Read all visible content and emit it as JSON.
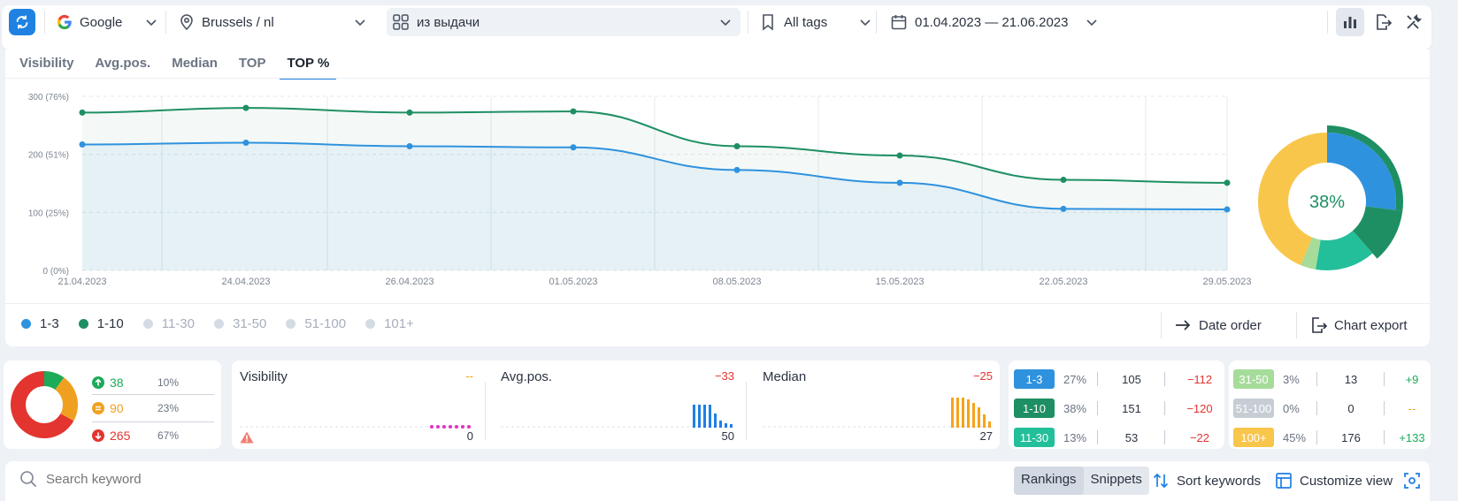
{
  "toolbar": {
    "search_engine": "Google",
    "region": "Brussels / nl",
    "source": "из выдачи",
    "tags": "All tags",
    "date_range": "01.04.2023 — 21.06.2023"
  },
  "tabs": [
    "Visibility",
    "Avg.pos.",
    "Median",
    "TOP",
    "TOP %"
  ],
  "chart_data": {
    "type": "area",
    "title": "TOP %",
    "x": [
      "21.04.2023",
      "24.04.2023",
      "26.04.2023",
      "01.05.2023",
      "08.05.2023",
      "15.05.2023",
      "22.05.2023",
      "29.05.2023"
    ],
    "y_ticks": [
      "0 (0%)",
      "100 (25%)",
      "200 (51%)",
      "300 (76%)"
    ],
    "ylim": [
      0,
      300
    ],
    "series": [
      {
        "name": "1-10",
        "color": "#1e8f63",
        "values": [
          272,
          280,
          272,
          274,
          214,
          198,
          156,
          151
        ]
      },
      {
        "name": "1-3",
        "color": "#2f92de",
        "values": [
          217,
          220,
          214,
          212,
          173,
          151,
          106,
          105
        ]
      }
    ],
    "donut": {
      "center_label": "38%",
      "segments": [
        {
          "name": "1-3",
          "value": 27,
          "color": "#2f92de"
        },
        {
          "name": "1-10",
          "value": 38,
          "color": "#1e8f63"
        },
        {
          "name": "11-30",
          "value": 13,
          "color": "#23bf9a"
        },
        {
          "name": "31-50",
          "value": 3,
          "color": "#a6dc9a"
        },
        {
          "name": "100+",
          "value": 45,
          "color": "#f8c64b"
        }
      ]
    }
  },
  "legend": {
    "items": [
      {
        "label": "1-3",
        "color": "#2f92de",
        "active": true
      },
      {
        "label": "1-10",
        "color": "#1e8f63",
        "active": true
      },
      {
        "label": "11-30",
        "color": "#d5dbe4",
        "active": false
      },
      {
        "label": "31-50",
        "color": "#d5dbe4",
        "active": false
      },
      {
        "label": "51-100",
        "color": "#d5dbe4",
        "active": false
      },
      {
        "label": "101+",
        "color": "#d5dbe4",
        "active": false
      }
    ],
    "date_order": "Date order",
    "chart_export": "Chart export"
  },
  "summary": {
    "up": {
      "count": "38",
      "pct": "10%"
    },
    "same": {
      "count": "90",
      "pct": "23%"
    },
    "down": {
      "count": "265",
      "pct": "67%"
    }
  },
  "metrics": [
    {
      "title": "Visibility",
      "delta": "--",
      "value": "0"
    },
    {
      "title": "Avg.pos.",
      "delta": "−33",
      "value": "50"
    },
    {
      "title": "Median",
      "delta": "−25",
      "value": "27"
    }
  ],
  "distribution": [
    {
      "label": "1-3",
      "color": "#2f92de",
      "pct": "27%",
      "count": "105",
      "delta": "−112",
      "delta_type": "red"
    },
    {
      "label": "1-10",
      "color": "#1e8f63",
      "pct": "38%",
      "count": "151",
      "delta": "−120",
      "delta_type": "red"
    },
    {
      "label": "11-30",
      "color": "#23bf9a",
      "pct": "13%",
      "count": "53",
      "delta": "−22",
      "delta_type": "red"
    },
    {
      "label": "31-50",
      "color": "#a6dc9a",
      "pct": "3%",
      "count": "13",
      "delta": "+9",
      "delta_type": "green"
    },
    {
      "label": "51-100",
      "color": "#c7cdd5",
      "pct": "0%",
      "count": "0",
      "delta": "--",
      "delta_type": "orange"
    },
    {
      "label": "100+",
      "color": "#f8c64b",
      "pct": "45%",
      "count": "176",
      "delta": "+133",
      "delta_type": "green"
    }
  ],
  "searchbar": {
    "placeholder": "Search keyword",
    "rankings": "Rankings",
    "snippets": "Snippets",
    "sort": "Sort keywords",
    "customize": "Customize view"
  }
}
